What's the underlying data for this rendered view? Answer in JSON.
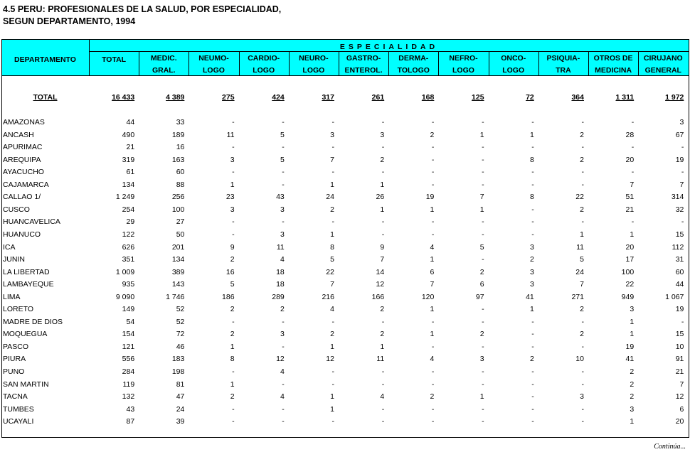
{
  "header": {
    "title": [
      "4.5  PERU: PROFESIONALES DE LA SALUD, POR ESPECIALIDAD,",
      "SEGUN DEPARTAMENTO, 1994"
    ]
  },
  "table": {
    "stub_header": "DEPARTAMENTO",
    "group_header": "ESPECIALIDAD",
    "columns": [
      [
        "TOTAL"
      ],
      [
        "MEDIC.",
        "GRAL."
      ],
      [
        "NEUMO-",
        "LOGO"
      ],
      [
        "CARDIO-",
        "LOGO"
      ],
      [
        "NEURO-",
        "LOGO"
      ],
      [
        "GASTRO-",
        "ENTEROL."
      ],
      [
        "DERMA-",
        "TOLOGO"
      ],
      [
        "NEFRO-",
        "LOGO"
      ],
      [
        "ONCO-",
        "LOGO"
      ],
      [
        "PSIQUIA-",
        "TRA"
      ],
      [
        "OTROS DE",
        "MEDICINA"
      ],
      [
        "CIRUJANO",
        "GENERAL"
      ]
    ],
    "total": {
      "label": "TOTAL",
      "values": [
        "16 433",
        "4 389",
        "275",
        "424",
        "317",
        "261",
        "168",
        "125",
        "72",
        "364",
        "1 311",
        "1 972"
      ]
    },
    "rows": [
      {
        "label": "AMAZONAS",
        "values": [
          "44",
          "33",
          "-",
          "-",
          "-",
          "-",
          "-",
          "-",
          "-",
          "-",
          "-",
          "3"
        ]
      },
      {
        "label": "ANCASH",
        "values": [
          "490",
          "189",
          "11",
          "5",
          "3",
          "3",
          "2",
          "1",
          "1",
          "2",
          "28",
          "67"
        ]
      },
      {
        "label": "APURIMAC",
        "values": [
          "21",
          "16",
          "-",
          "-",
          "-",
          "-",
          "-",
          "-",
          "-",
          "-",
          "-",
          "-"
        ]
      },
      {
        "label": "AREQUIPA",
        "values": [
          "319",
          "163",
          "3",
          "5",
          "7",
          "2",
          "-",
          "-",
          "8",
          "2",
          "20",
          "19"
        ]
      },
      {
        "label": "AYACUCHO",
        "values": [
          "61",
          "60",
          "-",
          "-",
          "-",
          "-",
          "-",
          "-",
          "-",
          "-",
          "-",
          "-"
        ]
      },
      {
        "label": "CAJAMARCA",
        "values": [
          "134",
          "88",
          "1",
          "-",
          "1",
          "1",
          "-",
          "-",
          "-",
          "-",
          "7",
          "7"
        ]
      },
      {
        "label": "CALLAO 1/",
        "values": [
          "1 249",
          "256",
          "23",
          "43",
          "24",
          "26",
          "19",
          "7",
          "8",
          "22",
          "51",
          "314"
        ]
      },
      {
        "label": "CUSCO",
        "values": [
          "254",
          "100",
          "3",
          "3",
          "2",
          "1",
          "1",
          "1",
          "-",
          "2",
          "21",
          "32"
        ]
      },
      {
        "label": "HUANCAVELICA",
        "values": [
          "29",
          "27",
          "-",
          "-",
          "-",
          "-",
          "-",
          "-",
          "-",
          "-",
          "-",
          "-"
        ]
      },
      {
        "label": "HUANUCO",
        "values": [
          "122",
          "50",
          "-",
          "3",
          "1",
          "-",
          "-",
          "-",
          "-",
          "1",
          "1",
          "15"
        ]
      },
      {
        "label": "ICA",
        "values": [
          "626",
          "201",
          "9",
          "11",
          "8",
          "9",
          "4",
          "5",
          "3",
          "11",
          "20",
          "112"
        ]
      },
      {
        "label": "JUNIN",
        "values": [
          "351",
          "134",
          "2",
          "4",
          "5",
          "7",
          "1",
          "-",
          "2",
          "5",
          "17",
          "31"
        ]
      },
      {
        "label": "LA LIBERTAD",
        "values": [
          "1 009",
          "389",
          "16",
          "18",
          "22",
          "14",
          "6",
          "2",
          "3",
          "24",
          "100",
          "60"
        ]
      },
      {
        "label": "LAMBAYEQUE",
        "values": [
          "935",
          "143",
          "5",
          "18",
          "7",
          "12",
          "7",
          "6",
          "3",
          "7",
          "22",
          "44"
        ]
      },
      {
        "label": "LIMA",
        "values": [
          "9 090",
          "1 746",
          "186",
          "289",
          "216",
          "166",
          "120",
          "97",
          "41",
          "271",
          "949",
          "1 067"
        ]
      },
      {
        "label": "LORETO",
        "values": [
          "149",
          "52",
          "2",
          "2",
          "4",
          "2",
          "1",
          "-",
          "1",
          "2",
          "3",
          "19"
        ]
      },
      {
        "label": "MADRE DE DIOS",
        "values": [
          "54",
          "52",
          "-",
          "-",
          "-",
          "-",
          "-",
          "-",
          "-",
          "-",
          "1",
          "-"
        ]
      },
      {
        "label": "MOQUEGUA",
        "values": [
          "154",
          "72",
          "2",
          "3",
          "2",
          "2",
          "1",
          "2",
          "-",
          "2",
          "1",
          "15"
        ]
      },
      {
        "label": "PASCO",
        "values": [
          "121",
          "46",
          "1",
          "-",
          "1",
          "1",
          "-",
          "-",
          "-",
          "-",
          "19",
          "10"
        ]
      },
      {
        "label": "PIURA",
        "values": [
          "556",
          "183",
          "8",
          "12",
          "12",
          "11",
          "4",
          "3",
          "2",
          "10",
          "41",
          "91"
        ]
      },
      {
        "label": "PUNO",
        "values": [
          "284",
          "198",
          "-",
          "4",
          "-",
          "-",
          "-",
          "-",
          "-",
          "-",
          "2",
          "21"
        ]
      },
      {
        "label": "SAN MARTIN",
        "values": [
          "119",
          "81",
          "1",
          "-",
          "-",
          "-",
          "-",
          "-",
          "-",
          "-",
          "2",
          "7"
        ]
      },
      {
        "label": "TACNA",
        "values": [
          "132",
          "47",
          "2",
          "4",
          "1",
          "4",
          "2",
          "1",
          "-",
          "3",
          "2",
          "12"
        ]
      },
      {
        "label": "TUMBES",
        "values": [
          "43",
          "24",
          "-",
          "-",
          "1",
          "-",
          "-",
          "-",
          "-",
          "-",
          "3",
          "6"
        ]
      },
      {
        "label": "UCAYALI",
        "values": [
          "87",
          "39",
          "-",
          "-",
          "-",
          "-",
          "-",
          "-",
          "-",
          "-",
          "1",
          "20"
        ]
      }
    ]
  },
  "footer": "Continúa..."
}
